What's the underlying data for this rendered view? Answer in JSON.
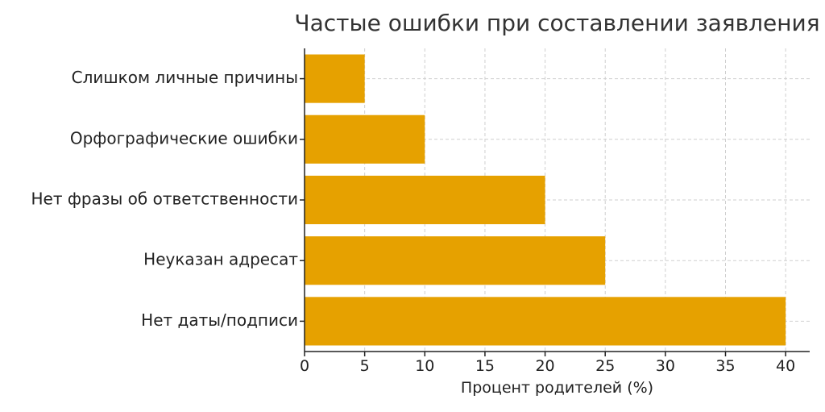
{
  "chart_data": {
    "type": "bar",
    "orientation": "horizontal",
    "title": "Частые ошибки при составлении заявления",
    "xlabel": "Процент родителей (%)",
    "ylabel": "",
    "categories": [
      "Слишком личные причины",
      "Орфографические ошибки",
      "Нет фразы об ответственности",
      "Неуказан адресат",
      "Нет даты/подписи"
    ],
    "values": [
      5,
      10,
      20,
      25,
      40
    ],
    "xlim": [
      0,
      42
    ],
    "xticks": [
      0,
      5,
      10,
      15,
      20,
      25,
      30,
      35,
      40
    ],
    "grid": true,
    "bar_color": "#E6A100"
  }
}
